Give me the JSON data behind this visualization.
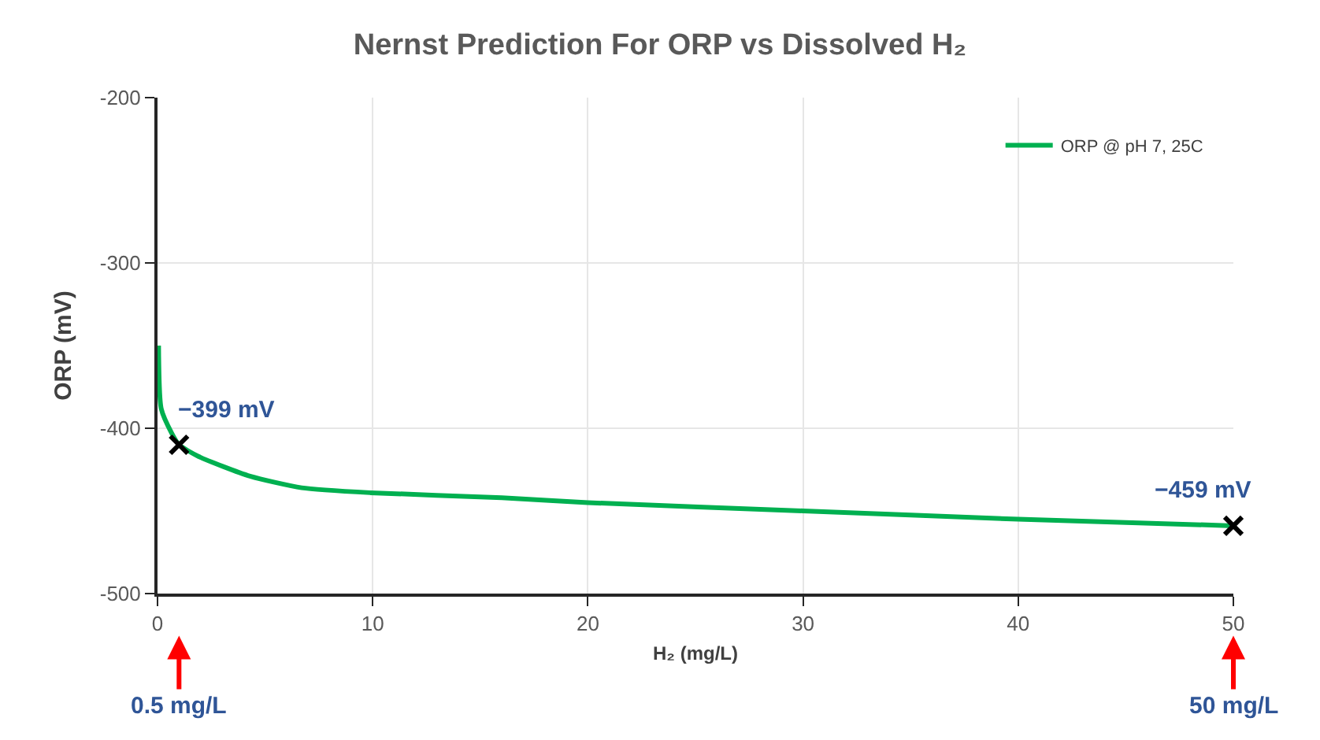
{
  "chart_data": {
    "type": "line",
    "title": "Nernst Prediction For ORP vs Dissolved H₂",
    "xlabel": "H₂ (mg/L)",
    "ylabel": "ORP (mV)",
    "xlim": [
      0,
      50
    ],
    "xticks": [
      0,
      10,
      20,
      30,
      40,
      50
    ],
    "ylim": [
      -500,
      -200
    ],
    "yticks": [
      -500,
      -400,
      -300,
      -200
    ],
    "grid": true,
    "legend": "top right",
    "series": [
      {
        "name": "ORP @ pH 7, 25C",
        "color": "#00b050",
        "marker": "none",
        "x": [
          0.05,
          0.17,
          0.66,
          1.0,
          1.9,
          4.3,
          6.7,
          9.9,
          16,
          20,
          30,
          40,
          50
        ],
        "values": [
          -350,
          -388,
          -403,
          -410,
          -417,
          -429,
          -436,
          -439,
          -442,
          -445,
          -450,
          -455,
          -459
        ]
      },
      {
        "color": "#000000",
        "type": "scatter",
        "marker": "cross",
        "x": [
          1,
          50
        ],
        "values": [
          -410,
          -459
        ]
      }
    ],
    "annotations": [
      {
        "text": "−399 mV",
        "x": 1,
        "y": -410
      },
      {
        "text": "−459 mV",
        "x": 50,
        "y": -459
      },
      "0.5 mg/L",
      "50 mg/L"
    ]
  }
}
